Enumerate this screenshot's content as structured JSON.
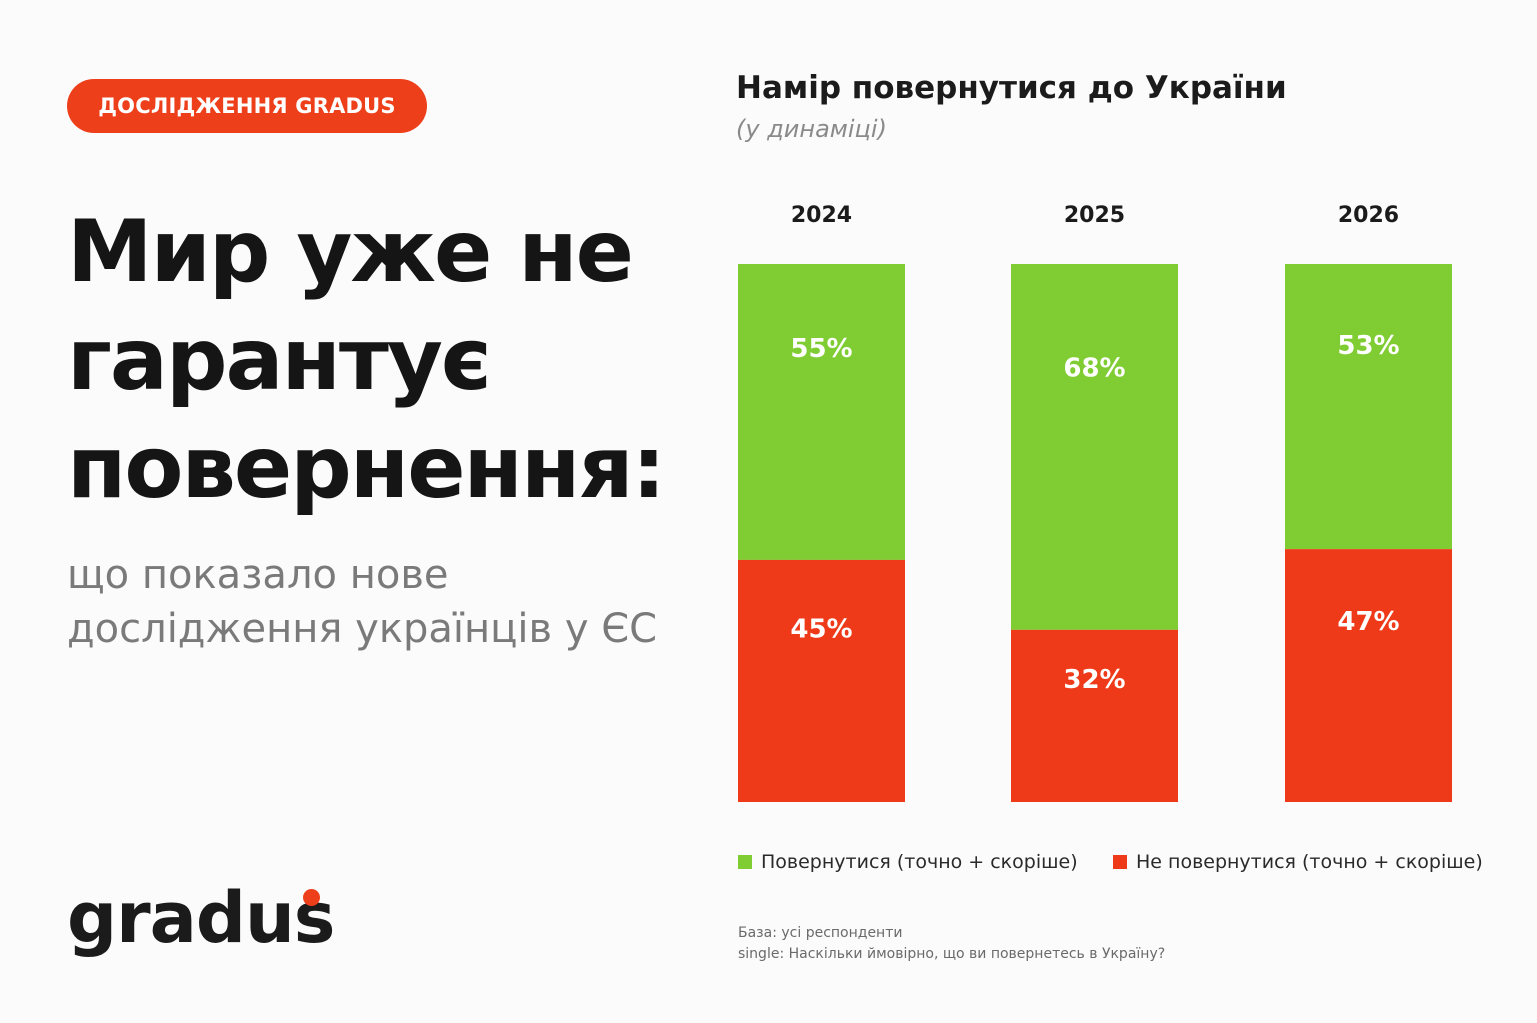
{
  "badge": "ДОСЛІДЖЕННЯ GRADUS",
  "headline": "Мир уже не гарантує повернення:",
  "subhead": "що показало нове дослідження українців у ЄС",
  "logo": "gradus",
  "footnotes": [
    "База: усі респонденти",
    "single: Наскільки ймовірно, що ви повернетесь в Україну?"
  ],
  "colors": {
    "accent": "#ee3f1b",
    "return": "#7fcc33",
    "not_return": "#ee3a18"
  },
  "chart_data": {
    "type": "bar",
    "stacked": true,
    "title": "Намір повернутися до України",
    "subtitle": "(у динаміці)",
    "categories": [
      "2024",
      "2025",
      "2026"
    ],
    "series": [
      {
        "name": "Повернутися (точно + скоріше)",
        "values": [
          55,
          68,
          53
        ],
        "labels": [
          "55%",
          "68%",
          "53%"
        ],
        "color": "#7fcc33"
      },
      {
        "name": "Не повернутися (точно + скоріше)",
        "values": [
          45,
          32,
          47
        ],
        "labels": [
          "45%",
          "32%",
          "47%"
        ],
        "color": "#ee3a18"
      }
    ],
    "ylim": [
      0,
      100
    ],
    "legend_position": "bottom",
    "grid": false
  }
}
